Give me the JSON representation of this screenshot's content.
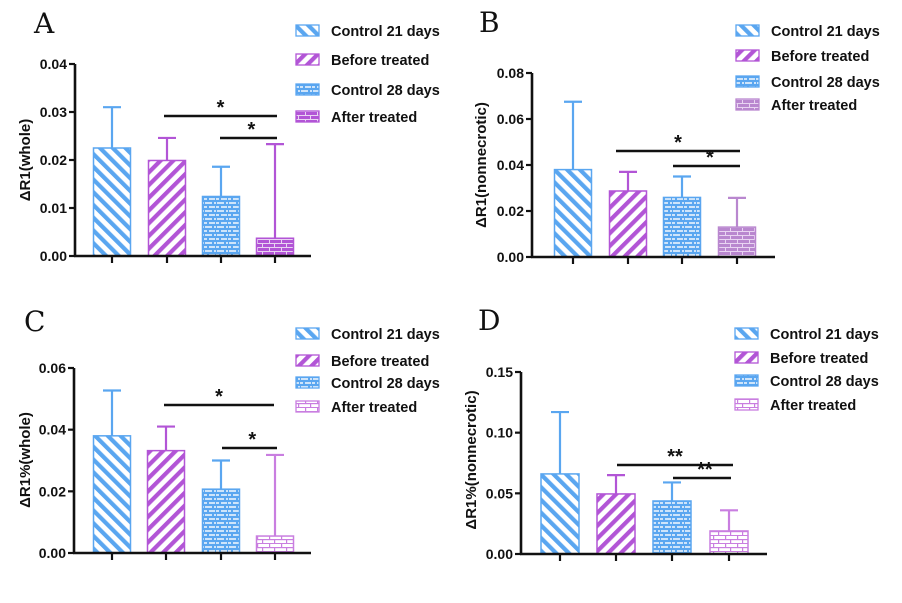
{
  "figure": {
    "legend_entries": [
      "Control 21 days",
      "Before treated",
      "Control 28 days",
      "After treated"
    ]
  },
  "colors": {
    "blue": "#5aa6f0",
    "purple": "#b255d6",
    "purple_muted": "#b987cf",
    "purple_light": "#c97ee0",
    "axis": "#111111"
  },
  "chart_data": [
    {
      "panel": "A",
      "type": "bar",
      "title": "",
      "ylabel": "ΔR1(whole)",
      "xlabel": "",
      "ylim": [
        0,
        0.04
      ],
      "yticks": [
        "0.00",
        "0.01",
        "0.02",
        "0.03",
        "0.04"
      ],
      "ytick_values": [
        0,
        0.01,
        0.02,
        0.03,
        0.04
      ],
      "categories": [
        "Control 21 days",
        "Before treated",
        "Control 28 days",
        "After treated"
      ],
      "values": [
        0.0225,
        0.0199,
        0.0124,
        0.0037
      ],
      "error_upper": [
        0.031,
        0.0246,
        0.0186,
        0.0233
      ],
      "patterns": [
        "diag-back",
        "diag-fwd",
        "brick",
        "brick-solid"
      ],
      "colors": [
        "#5aa6f0",
        "#b255d6",
        "#5aa6f0",
        "#b255d6"
      ],
      "significance": [
        {
          "from": 1,
          "to": 3,
          "label": "*"
        },
        {
          "from": 2,
          "to": 3,
          "label": "*"
        }
      ],
      "legend": "top-right",
      "grid": false
    },
    {
      "panel": "B",
      "type": "bar",
      "title": "",
      "ylabel": "ΔR1(nonnecrotic)",
      "xlabel": "",
      "ylim": [
        0,
        0.08
      ],
      "yticks": [
        "0.00",
        "0.02",
        "0.04",
        "0.06",
        "0.08"
      ],
      "ytick_values": [
        0,
        0.02,
        0.04,
        0.06,
        0.08
      ],
      "categories": [
        "Control 21 days",
        "Before treated",
        "Control 28 days",
        "After treated"
      ],
      "values": [
        0.038,
        0.0287,
        0.0259,
        0.013
      ],
      "error_upper": [
        0.0675,
        0.037,
        0.035,
        0.0257
      ],
      "patterns": [
        "diag-back",
        "diag-fwd",
        "brick",
        "brick-solid"
      ],
      "colors": [
        "#5aa6f0",
        "#b255d6",
        "#5aa6f0",
        "#b987cf"
      ],
      "significance": [
        {
          "from": 1,
          "to": 3,
          "label": "*"
        },
        {
          "from": 2,
          "to": 3,
          "label": "*"
        }
      ],
      "legend": "top-right",
      "grid": false
    },
    {
      "panel": "C",
      "type": "bar",
      "title": "",
      "ylabel": "ΔR1%(whole)",
      "xlabel": "",
      "ylim": [
        0,
        0.06
      ],
      "yticks": [
        "0.00",
        "0.02",
        "0.04",
        "0.06"
      ],
      "ytick_values": [
        0,
        0.02,
        0.04,
        0.06
      ],
      "categories": [
        "Control 21 days",
        "Before treated",
        "Control 28 days",
        "After treated"
      ],
      "values": [
        0.038,
        0.0332,
        0.0207,
        0.0055
      ],
      "error_upper": [
        0.0527,
        0.041,
        0.03,
        0.0318
      ],
      "patterns": [
        "diag-back",
        "diag-fwd",
        "brick",
        "brick-light"
      ],
      "colors": [
        "#5aa6f0",
        "#b255d6",
        "#5aa6f0",
        "#c97ee0"
      ],
      "significance": [
        {
          "from": 1,
          "to": 3,
          "label": "*"
        },
        {
          "from": 2,
          "to": 3,
          "label": "*"
        }
      ],
      "legend": "top-right",
      "grid": false
    },
    {
      "panel": "D",
      "type": "bar",
      "title": "",
      "ylabel": "ΔR1%(nonnecrotic)",
      "xlabel": "",
      "ylim": [
        0,
        0.15
      ],
      "yticks": [
        "0.00",
        "0.05",
        "0.10",
        "0.15"
      ],
      "ytick_values": [
        0,
        0.05,
        0.1,
        0.15
      ],
      "categories": [
        "Control 21 days",
        "Before treated",
        "Control 28 days",
        "After treated"
      ],
      "values": [
        0.066,
        0.0495,
        0.0437,
        0.019
      ],
      "error_upper": [
        0.117,
        0.065,
        0.059,
        0.036
      ],
      "patterns": [
        "diag-back",
        "diag-fwd",
        "brick",
        "brick-light"
      ],
      "colors": [
        "#5aa6f0",
        "#b255d6",
        "#5aa6f0",
        "#c97ee0"
      ],
      "significance": [
        {
          "from": 1,
          "to": 3,
          "label": "**"
        },
        {
          "from": 2,
          "to": 3,
          "label": "**"
        }
      ],
      "legend": "top-right",
      "grid": false
    }
  ]
}
